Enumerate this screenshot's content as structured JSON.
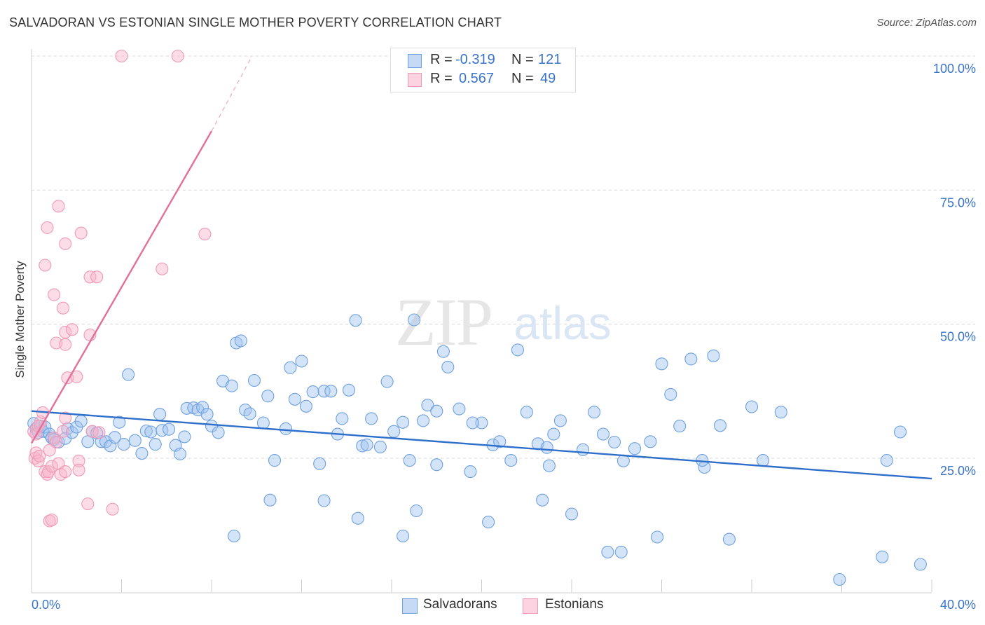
{
  "title": "SALVADORAN VS ESTONIAN SINGLE MOTHER POVERTY CORRELATION CHART",
  "source": "Source: ZipAtlas.com",
  "watermark": {
    "zip": "ZIP",
    "atlas": "atlas"
  },
  "legend": {
    "r_label": "R =",
    "n_label": "N =",
    "rows": [
      {
        "r": "-0.319",
        "n": "121",
        "color": "#6fa0e0"
      },
      {
        "r": "0.567",
        "n": "49",
        "color": "#f09ab5"
      }
    ]
  },
  "bottom_legend": [
    "Salvadorans",
    "Estonians"
  ],
  "chart_data": {
    "type": "scatter",
    "title": "SALVADORAN VS ESTONIAN SINGLE MOTHER POVERTY CORRELATION CHART",
    "xlabel": "",
    "ylabel": "Single Mother Poverty",
    "xlim": [
      0,
      40
    ],
    "ylim": [
      0,
      102
    ],
    "x_tick_labels": [
      "0.0%",
      "40.0%"
    ],
    "y_ticks": [
      25,
      50,
      75,
      100
    ],
    "y_tick_labels": [
      "25.0%",
      "50.0%",
      "75.0%",
      "100.0%"
    ],
    "grid": true,
    "legend_position": "top-center",
    "series": [
      {
        "name": "Salvadorans",
        "color": "#6fa0e0",
        "trend_color": "#2e6fcc",
        "trend": {
          "x": [
            0,
            40
          ],
          "y": [
            33.8,
            21.2
          ]
        },
        "points": [
          [
            0.1,
            31.5
          ],
          [
            0.2,
            30.5
          ],
          [
            0.3,
            29.8
          ],
          [
            0.4,
            31.0
          ],
          [
            0.5,
            30.0
          ],
          [
            0.6,
            30.8
          ],
          [
            0.8,
            29.5
          ],
          [
            0.9,
            28.8
          ],
          [
            1.0,
            28.5
          ],
          [
            1.2,
            28.0
          ],
          [
            1.5,
            28.7
          ],
          [
            1.6,
            30.5
          ],
          [
            1.8,
            29.8
          ],
          [
            2.0,
            30.8
          ],
          [
            2.2,
            31.9
          ],
          [
            2.5,
            28.1
          ],
          [
            2.7,
            30.0
          ],
          [
            2.9,
            29.7
          ],
          [
            3.1,
            28.1
          ],
          [
            3.3,
            28.1
          ],
          [
            3.5,
            27.3
          ],
          [
            3.7,
            28.9
          ],
          [
            3.9,
            31.7
          ],
          [
            4.1,
            27.6
          ],
          [
            4.3,
            40.6
          ],
          [
            4.6,
            28.3
          ],
          [
            4.9,
            25.9
          ],
          [
            5.1,
            30.1
          ],
          [
            5.3,
            29.9
          ],
          [
            5.5,
            27.6
          ],
          [
            5.7,
            33.2
          ],
          [
            5.8,
            30.2
          ],
          [
            6.1,
            30.4
          ],
          [
            6.4,
            27.4
          ],
          [
            6.6,
            25.8
          ],
          [
            6.8,
            29.0
          ],
          [
            6.9,
            34.3
          ],
          [
            7.2,
            34.4
          ],
          [
            7.4,
            34.0
          ],
          [
            7.6,
            34.5
          ],
          [
            7.8,
            33.2
          ],
          [
            8.0,
            31.0
          ],
          [
            8.3,
            29.8
          ],
          [
            8.5,
            39.4
          ],
          [
            8.9,
            38.5
          ],
          [
            9.1,
            46.5
          ],
          [
            9.3,
            46.9
          ],
          [
            9.5,
            34.0
          ],
          [
            9.7,
            33.3
          ],
          [
            9.9,
            39.5
          ],
          [
            10.3,
            31.6
          ],
          [
            10.5,
            36.6
          ],
          [
            10.8,
            24.6
          ],
          [
            11.3,
            30.5
          ],
          [
            11.5,
            41.9
          ],
          [
            11.7,
            36.0
          ],
          [
            12.0,
            43.1
          ],
          [
            12.2,
            34.7
          ],
          [
            12.5,
            37.4
          ],
          [
            12.8,
            24.0
          ],
          [
            13.0,
            37.5
          ],
          [
            13.3,
            37.5
          ],
          [
            13.6,
            29.5
          ],
          [
            13.8,
            32.4
          ],
          [
            14.1,
            37.7
          ],
          [
            14.4,
            50.7
          ],
          [
            14.7,
            27.3
          ],
          [
            14.9,
            27.5
          ],
          [
            15.1,
            32.4
          ],
          [
            15.5,
            27.1
          ],
          [
            15.8,
            39.3
          ],
          [
            16.1,
            30.0
          ],
          [
            16.5,
            31.7
          ],
          [
            16.8,
            24.6
          ],
          [
            17.0,
            50.8
          ],
          [
            17.4,
            32.0
          ],
          [
            17.6,
            34.9
          ],
          [
            18.0,
            33.8
          ],
          [
            18.3,
            44.9
          ],
          [
            18.5,
            42.0
          ],
          [
            19.0,
            34.2
          ],
          [
            19.5,
            22.5
          ],
          [
            20.0,
            31.6
          ],
          [
            20.5,
            27.5
          ],
          [
            20.8,
            28.1
          ],
          [
            21.3,
            24.6
          ],
          [
            21.6,
            45.2
          ],
          [
            22.0,
            33.6
          ],
          [
            22.5,
            27.7
          ],
          [
            22.9,
            27.0
          ],
          [
            23.2,
            29.5
          ],
          [
            23.5,
            32.0
          ],
          [
            24.0,
            14.6
          ],
          [
            24.5,
            26.6
          ],
          [
            25.0,
            33.6
          ],
          [
            25.4,
            29.5
          ],
          [
            25.9,
            28.0
          ],
          [
            26.3,
            24.5
          ],
          [
            26.8,
            26.8
          ],
          [
            27.5,
            28.1
          ],
          [
            28.0,
            42.6
          ],
          [
            28.4,
            36.9
          ],
          [
            28.8,
            31.0
          ],
          [
            29.3,
            43.5
          ],
          [
            29.9,
            23.3
          ],
          [
            30.3,
            44.1
          ],
          [
            30.6,
            31.1
          ],
          [
            31.0,
            9.9
          ],
          [
            32.0,
            34.6
          ],
          [
            32.5,
            24.6
          ],
          [
            27.8,
            10.3
          ],
          [
            26.2,
            7.5
          ],
          [
            25.6,
            7.5
          ],
          [
            22.7,
            17.2
          ],
          [
            20.3,
            13.1
          ],
          [
            17.1,
            15.2
          ],
          [
            14.5,
            13.8
          ],
          [
            13.0,
            17.1
          ],
          [
            10.6,
            17.2
          ],
          [
            9.0,
            10.5
          ],
          [
            33.3,
            33.6
          ],
          [
            38.0,
            24.6
          ],
          [
            38.6,
            29.9
          ],
          [
            37.8,
            6.6
          ],
          [
            39.5,
            5.2
          ],
          [
            35.9,
            2.4
          ],
          [
            29.8,
            24.6
          ],
          [
            23.0,
            23.6
          ],
          [
            19.6,
            31.6
          ],
          [
            18.0,
            23.8
          ],
          [
            16.5,
            10.5
          ]
        ]
      },
      {
        "name": "Estonians",
        "color": "#f09ab5",
        "trend_color": "#e2709a",
        "trend": {
          "x": [
            0,
            8.0
          ],
          "y": [
            27.8,
            86.0
          ]
        },
        "trend_dashed": {
          "x": [
            8.0,
            9.8
          ],
          "y": [
            86.0,
            100.0
          ]
        },
        "points": [
          [
            0.1,
            30.0
          ],
          [
            0.15,
            25.0
          ],
          [
            0.2,
            26.0
          ],
          [
            0.3,
            24.5
          ],
          [
            0.35,
            25.4
          ],
          [
            0.4,
            31.8
          ],
          [
            0.5,
            33.5
          ],
          [
            0.6,
            22.5
          ],
          [
            0.7,
            22.0
          ],
          [
            0.75,
            22.5
          ],
          [
            0.8,
            13.3
          ],
          [
            0.9,
            13.5
          ],
          [
            0.9,
            23.5
          ],
          [
            1.0,
            28.8
          ],
          [
            1.1,
            28.0
          ],
          [
            1.2,
            24.0
          ],
          [
            1.3,
            22.0
          ],
          [
            1.4,
            30.0
          ],
          [
            1.5,
            32.5
          ],
          [
            0.8,
            26.5
          ],
          [
            0.7,
            68.0
          ],
          [
            1.2,
            72.0
          ],
          [
            1.5,
            65.0
          ],
          [
            2.2,
            67.0
          ],
          [
            0.6,
            61.0
          ],
          [
            1.0,
            55.5
          ],
          [
            1.4,
            53.0
          ],
          [
            1.1,
            46.5
          ],
          [
            1.5,
            48.5
          ],
          [
            1.8,
            49.0
          ],
          [
            1.5,
            46.2
          ],
          [
            1.6,
            40.0
          ],
          [
            2.0,
            40.2
          ],
          [
            2.6,
            58.8
          ],
          [
            2.9,
            58.8
          ],
          [
            2.6,
            48.0
          ],
          [
            2.7,
            30.0
          ],
          [
            3.0,
            29.8
          ],
          [
            2.1,
            24.5
          ],
          [
            2.1,
            22.8
          ],
          [
            2.5,
            16.5
          ],
          [
            3.6,
            15.5
          ],
          [
            4.0,
            100.0
          ],
          [
            6.5,
            100.0
          ],
          [
            5.8,
            60.3
          ],
          [
            7.7,
            66.8
          ],
          [
            1.5,
            22.5
          ],
          [
            0.2,
            29.5
          ],
          [
            0.3,
            31.0
          ]
        ]
      }
    ]
  }
}
